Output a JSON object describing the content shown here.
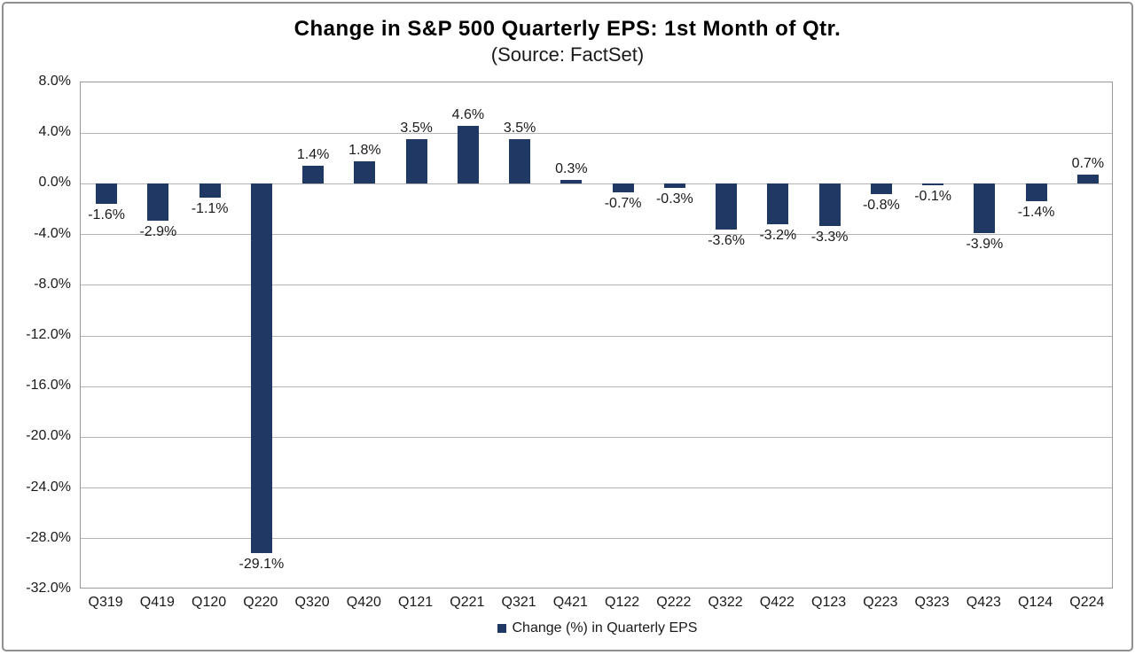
{
  "chart_data": {
    "type": "bar",
    "title": "Change in S&P 500 Quarterly EPS: 1st Month of Qtr.",
    "subtitle": "(Source: FactSet)",
    "categories": [
      "Q319",
      "Q419",
      "Q120",
      "Q220",
      "Q320",
      "Q420",
      "Q121",
      "Q221",
      "Q321",
      "Q421",
      "Q122",
      "Q222",
      "Q322",
      "Q422",
      "Q123",
      "Q223",
      "Q323",
      "Q423",
      "Q124",
      "Q224"
    ],
    "values": [
      -1.6,
      -2.9,
      -1.1,
      -29.1,
      1.4,
      1.8,
      3.5,
      4.6,
      3.5,
      0.3,
      -0.7,
      -0.3,
      -3.6,
      -3.2,
      -3.3,
      -0.8,
      -0.1,
      -3.9,
      -1.4,
      0.7
    ],
    "value_labels": [
      "-1.6%",
      "-2.9%",
      "-1.1%",
      "-29.1%",
      "1.4%",
      "1.8%",
      "3.5%",
      "4.6%",
      "3.5%",
      "0.3%",
      "-0.7%",
      "-0.3%",
      "-3.6%",
      "-3.2%",
      "-3.3%",
      "-0.8%",
      "-0.1%",
      "-3.9%",
      "-1.4%",
      "0.7%"
    ],
    "xlabel": "",
    "ylabel": "",
    "ylim": [
      -32,
      8
    ],
    "ytick_step": 4,
    "ytick_labels": [
      "8.0%",
      "4.0%",
      "0.0%",
      "-4.0%",
      "-8.0%",
      "-12.0%",
      "-16.0%",
      "-20.0%",
      "-24.0%",
      "-28.0%",
      "-32.0%"
    ],
    "grid": true,
    "legend": [
      "Change (%) in Quarterly EPS"
    ],
    "legend_position": "bottom",
    "style": {
      "bar_color": "#1f3864",
      "grid_color": "#b3b3b3",
      "plot_border_color": "#9a9a9a",
      "frame_border_color": "#8f8f8f",
      "text_color": "#1a1a1a",
      "title_color": "#000000"
    }
  }
}
